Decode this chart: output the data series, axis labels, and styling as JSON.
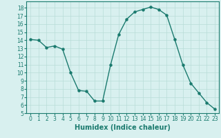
{
  "x": [
    0,
    1,
    2,
    3,
    4,
    5,
    6,
    7,
    8,
    9,
    10,
    11,
    12,
    13,
    14,
    15,
    16,
    17,
    18,
    19,
    20,
    21,
    22,
    23
  ],
  "y": [
    14.1,
    14.0,
    13.1,
    13.3,
    12.9,
    10.0,
    7.8,
    7.7,
    6.5,
    6.5,
    11.0,
    14.7,
    16.6,
    17.5,
    17.8,
    18.1,
    17.8,
    17.1,
    14.1,
    11.0,
    8.7,
    7.5,
    6.3,
    5.5
  ],
  "xlim": [
    -0.5,
    23.5
  ],
  "ylim": [
    5,
    18.8
  ],
  "yticks": [
    5,
    6,
    7,
    8,
    9,
    10,
    11,
    12,
    13,
    14,
    15,
    16,
    17,
    18
  ],
  "xticks": [
    0,
    1,
    2,
    3,
    4,
    5,
    6,
    7,
    8,
    9,
    10,
    11,
    12,
    13,
    14,
    15,
    16,
    17,
    18,
    19,
    20,
    21,
    22,
    23
  ],
  "xlabel": "Humidex (Indice chaleur)",
  "line_color": "#1a7a6e",
  "marker": "o",
  "marker_size": 2.2,
  "bg_color": "#d8f0ef",
  "grid_color": "#b8dcd8",
  "tick_fontsize": 5.5,
  "xlabel_fontsize": 7.0,
  "line_width": 1.0
}
